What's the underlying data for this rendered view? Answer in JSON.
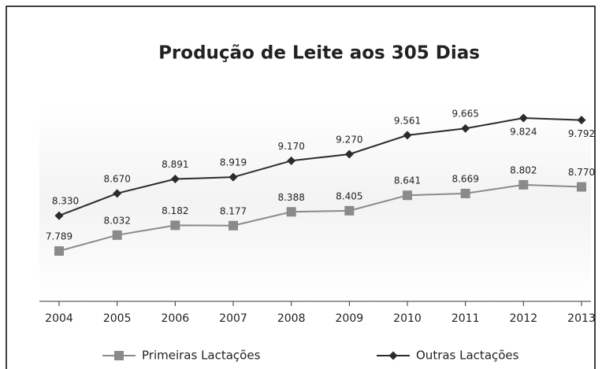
{
  "chart_data": {
    "type": "line",
    "title": "Produção de Leite aos 305 Dias",
    "categories": [
      "2004",
      "2005",
      "2006",
      "2007",
      "2008",
      "2009",
      "2010",
      "2011",
      "2012",
      "2013"
    ],
    "series": [
      {
        "name": "Primeiras Lactações",
        "color": "#8a8a8a",
        "marker": "square",
        "values": [
          7789,
          8032,
          8182,
          8177,
          8388,
          8405,
          8641,
          8669,
          8802,
          8770
        ],
        "value_labels": [
          "7.789",
          "8.032",
          "8.182",
          "8.177",
          "8.388",
          "8.405",
          "8.641",
          "8.669",
          "8.802",
          "8.770"
        ]
      },
      {
        "name": "Outras Lactações",
        "color": "#2b2b2b",
        "marker": "diamond",
        "values": [
          8330,
          8670,
          8891,
          8919,
          9170,
          9270,
          9561,
          9665,
          9824,
          9792
        ],
        "value_labels": [
          "8.330",
          "8.670",
          "8.891",
          "8.919",
          "9.170",
          "9.270",
          "9.561",
          "9.665",
          "9.824",
          "9.792"
        ]
      }
    ]
  }
}
